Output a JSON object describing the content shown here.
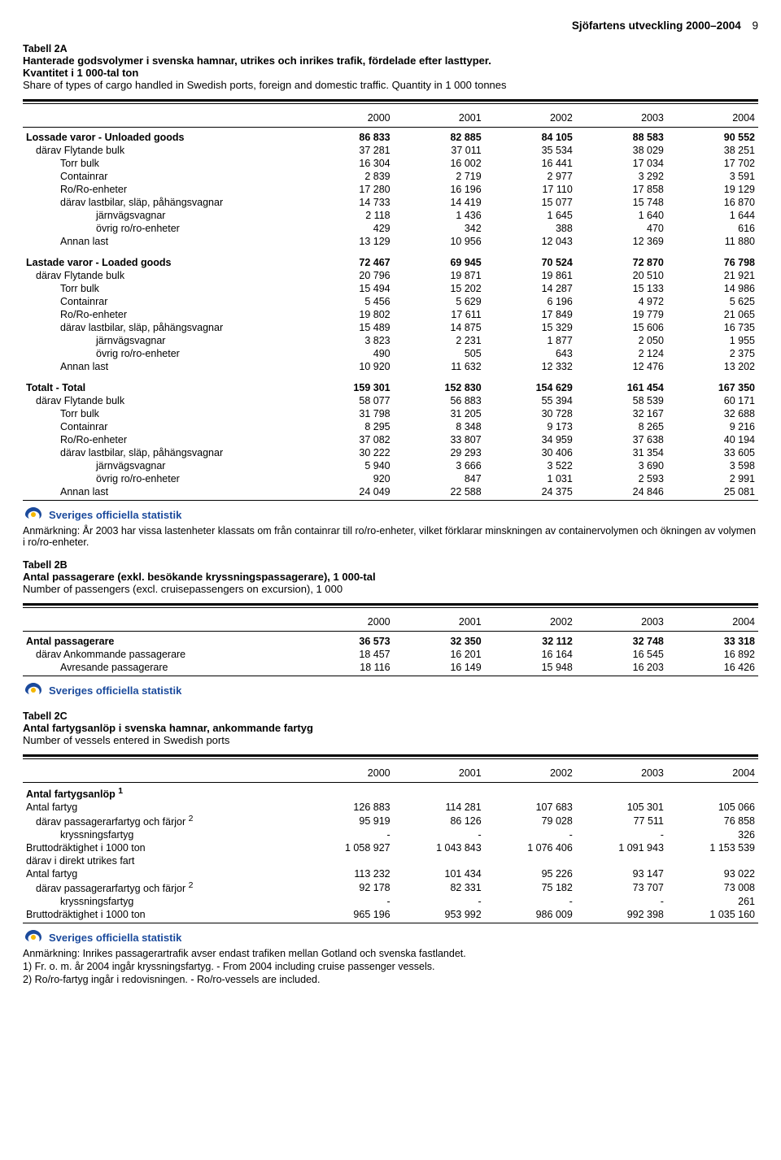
{
  "header": {
    "title": "Sjöfartens utveckling 2000–2004",
    "page": "9"
  },
  "tableA": {
    "id": "Tabell 2A",
    "title_sv": "Hanterade godsvolymer i svenska hamnar, utrikes och inrikes trafik, fördelade efter lasttyper.",
    "title_sv2": "Kvantitet i 1 000-tal ton",
    "title_en": "Share of types of cargo handled in Swedish ports, foreign and domestic traffic. Quantity in 1 000 tonnes",
    "years": [
      "2000",
      "2001",
      "2002",
      "2003",
      "2004"
    ],
    "groups": [
      {
        "heading": "Lossade varor - Unloaded goods",
        "vals": [
          "86 833",
          "82 885",
          "84 105",
          "88 583",
          "90 552"
        ],
        "rows": [
          {
            "label": "därav   Flytande bulk",
            "indent": 1,
            "vals": [
              "37 281",
              "37 011",
              "35 534",
              "38 029",
              "38 251"
            ]
          },
          {
            "label": "Torr bulk",
            "indent": 2,
            "vals": [
              "16 304",
              "16 002",
              "16 441",
              "17 034",
              "17 702"
            ]
          },
          {
            "label": "Containrar",
            "indent": 2,
            "vals": [
              "2 839",
              "2 719",
              "2 977",
              "3 292",
              "3 591"
            ]
          },
          {
            "label": "Ro/Ro-enheter",
            "indent": 2,
            "vals": [
              "17 280",
              "16 196",
              "17 110",
              "17 858",
              "19 129"
            ]
          },
          {
            "label": "därav   lastbilar, släp, påhängsvagnar",
            "indent": 3,
            "vals": [
              "14 733",
              "14 419",
              "15 077",
              "15 748",
              "16 870"
            ]
          },
          {
            "label": "järnvägsvagnar",
            "indent": 4,
            "vals": [
              "2 118",
              "1 436",
              "1 645",
              "1 640",
              "1 644"
            ]
          },
          {
            "label": "övrig ro/ro-enheter",
            "indent": 4,
            "vals": [
              "429",
              "342",
              "388",
              "470",
              "616"
            ]
          },
          {
            "label": "Annan last",
            "indent": 2,
            "vals": [
              "13 129",
              "10 956",
              "12 043",
              "12 369",
              "11 880"
            ]
          }
        ]
      },
      {
        "heading": "Lastade varor - Loaded goods",
        "vals": [
          "72 467",
          "69 945",
          "70 524",
          "72 870",
          "76 798"
        ],
        "rows": [
          {
            "label": "därav   Flytande bulk",
            "indent": 1,
            "vals": [
              "20 796",
              "19 871",
              "19 861",
              "20 510",
              "21 921"
            ]
          },
          {
            "label": "Torr bulk",
            "indent": 2,
            "vals": [
              "15 494",
              "15 202",
              "14 287",
              "15 133",
              "14 986"
            ]
          },
          {
            "label": "Containrar",
            "indent": 2,
            "vals": [
              "5 456",
              "5 629",
              "6 196",
              "4 972",
              "5 625"
            ]
          },
          {
            "label": "Ro/Ro-enheter",
            "indent": 2,
            "vals": [
              "19 802",
              "17 611",
              "17 849",
              "19 779",
              "21 065"
            ]
          },
          {
            "label": "därav   lastbilar, släp, påhängsvagnar",
            "indent": 3,
            "vals": [
              "15 489",
              "14 875",
              "15 329",
              "15 606",
              "16 735"
            ]
          },
          {
            "label": "järnvägsvagnar",
            "indent": 4,
            "vals": [
              "3 823",
              "2 231",
              "1 877",
              "2 050",
              "1 955"
            ]
          },
          {
            "label": "övrig ro/ro-enheter",
            "indent": 4,
            "vals": [
              "490",
              "505",
              "643",
              "2 124",
              "2 375"
            ]
          },
          {
            "label": "Annan last",
            "indent": 2,
            "vals": [
              "10 920",
              "11 632",
              "12 332",
              "12 476",
              "13 202"
            ]
          }
        ]
      },
      {
        "heading": "Totalt - Total",
        "vals": [
          "159 301",
          "152 830",
          "154 629",
          "161 454",
          "167 350"
        ],
        "rows": [
          {
            "label": "därav   Flytande bulk",
            "indent": 1,
            "vals": [
              "58 077",
              "56 883",
              "55 394",
              "58 539",
              "60 171"
            ]
          },
          {
            "label": "Torr bulk",
            "indent": 2,
            "vals": [
              "31 798",
              "31 205",
              "30 728",
              "32 167",
              "32 688"
            ]
          },
          {
            "label": "Containrar",
            "indent": 2,
            "vals": [
              "8 295",
              "8 348",
              "9 173",
              "8 265",
              "9 216"
            ]
          },
          {
            "label": "Ro/Ro-enheter",
            "indent": 2,
            "vals": [
              "37 082",
              "33 807",
              "34 959",
              "37 638",
              "40 194"
            ]
          },
          {
            "label": "därav   lastbilar, släp, påhängsvagnar",
            "indent": 3,
            "vals": [
              "30 222",
              "29 293",
              "30 406",
              "31 354",
              "33 605"
            ]
          },
          {
            "label": "järnvägsvagnar",
            "indent": 4,
            "vals": [
              "5 940",
              "3 666",
              "3 522",
              "3 690",
              "3 598"
            ]
          },
          {
            "label": "övrig ro/ro-enheter",
            "indent": 4,
            "vals": [
              "920",
              "847",
              "1 031",
              "2 593",
              "2 991"
            ]
          },
          {
            "label": "Annan last",
            "indent": 2,
            "vals": [
              "24 049",
              "22 588",
              "24 375",
              "24 846",
              "25 081"
            ]
          }
        ]
      }
    ],
    "logo_text": "Sveriges officiella statistik",
    "note": "Anmärkning: År 2003 har vissa lastenheter klassats om från containrar till ro/ro-enheter, vilket förklarar minskningen av containervolymen och ökningen av volymen i ro/ro-enheter."
  },
  "tableB": {
    "id": "Tabell 2B",
    "title_sv": "Antal passagerare (exkl. besökande kryssningspassagerare), 1 000-tal",
    "title_en": "Number of passengers (excl. cruisepassengers on excursion), 1 000",
    "years": [
      "2000",
      "2001",
      "2002",
      "2003",
      "2004"
    ],
    "rows": [
      {
        "label": "Antal passagerare",
        "bold": true,
        "vals": [
          "36 573",
          "32 350",
          "32 112",
          "32 748",
          "33 318"
        ]
      },
      {
        "label": "därav   Ankommande passagerare",
        "indent": 1,
        "vals": [
          "18 457",
          "16 201",
          "16 164",
          "16 545",
          "16 892"
        ]
      },
      {
        "label": "Avresande passagerare",
        "indent": 2,
        "vals": [
          "18 116",
          "16 149",
          "15 948",
          "16 203",
          "16 426"
        ]
      }
    ],
    "logo_text": "Sveriges officiella statistik"
  },
  "tableC": {
    "id": "Tabell 2C",
    "title_sv": "Antal fartygsanlöp i svenska hamnar, ankommande fartyg",
    "title_en": "Number of vessels entered in Swedish ports",
    "years": [
      "2000",
      "2001",
      "2002",
      "2003",
      "2004"
    ],
    "rows": [
      {
        "label": "Antal fartygsanlöp ",
        "sup": "1",
        "bold": true,
        "vals": [
          "",
          "",
          "",
          "",
          ""
        ]
      },
      {
        "label": "Antal fartyg",
        "vals": [
          "126 883",
          "114 281",
          "107 683",
          "105 301",
          "105 066"
        ]
      },
      {
        "label": "därav   passagerarfartyg och färjor ",
        "sup": "2",
        "indent": 1,
        "vals": [
          "95 919",
          "86 126",
          "79 028",
          "77 511",
          "76 858"
        ]
      },
      {
        "label": "kryssningsfartyg",
        "indent": 2,
        "vals": [
          "-",
          "-",
          "-",
          "-",
          "326"
        ]
      },
      {
        "label": "Bruttodräktighet i 1000 ton",
        "vals": [
          "1 058 927",
          "1 043 843",
          "1 076 406",
          "1 091 943",
          "1 153 539"
        ]
      },
      {
        "label": "därav i direkt utrikes fart",
        "vals": [
          "",
          "",
          "",
          "",
          ""
        ]
      },
      {
        "label": "Antal fartyg",
        "vals": [
          "113 232",
          "101 434",
          "95 226",
          "93 147",
          "93 022"
        ]
      },
      {
        "label": "därav   passagerarfartyg och färjor ",
        "sup": "2",
        "indent": 1,
        "vals": [
          "92 178",
          "82 331",
          "75 182",
          "73 707",
          "73 008"
        ]
      },
      {
        "label": "kryssningsfartyg",
        "indent": 2,
        "vals": [
          "-",
          "-",
          "-",
          "-",
          "261"
        ]
      },
      {
        "label": "Bruttodräktighet i 1000 ton",
        "vals": [
          "965 196",
          "953 992",
          "986 009",
          "992 398",
          "1 035 160"
        ]
      }
    ],
    "logo_text": "Sveriges officiella statistik",
    "notes": [
      "Anmärkning: Inrikes passagerartrafik avser endast trafiken mellan Gotland och svenska fastlandet.",
      "1) Fr. o. m. år 2004 ingår kryssningsfartyg. - From 2004 including cruise passenger vessels.",
      "2) Ro/ro-fartyg ingår i redovisningen. - Ro/ro-vessels are included."
    ]
  },
  "style": {
    "logo_color_primary": "#1b4a9c",
    "logo_color_accent": "#f4b700"
  }
}
